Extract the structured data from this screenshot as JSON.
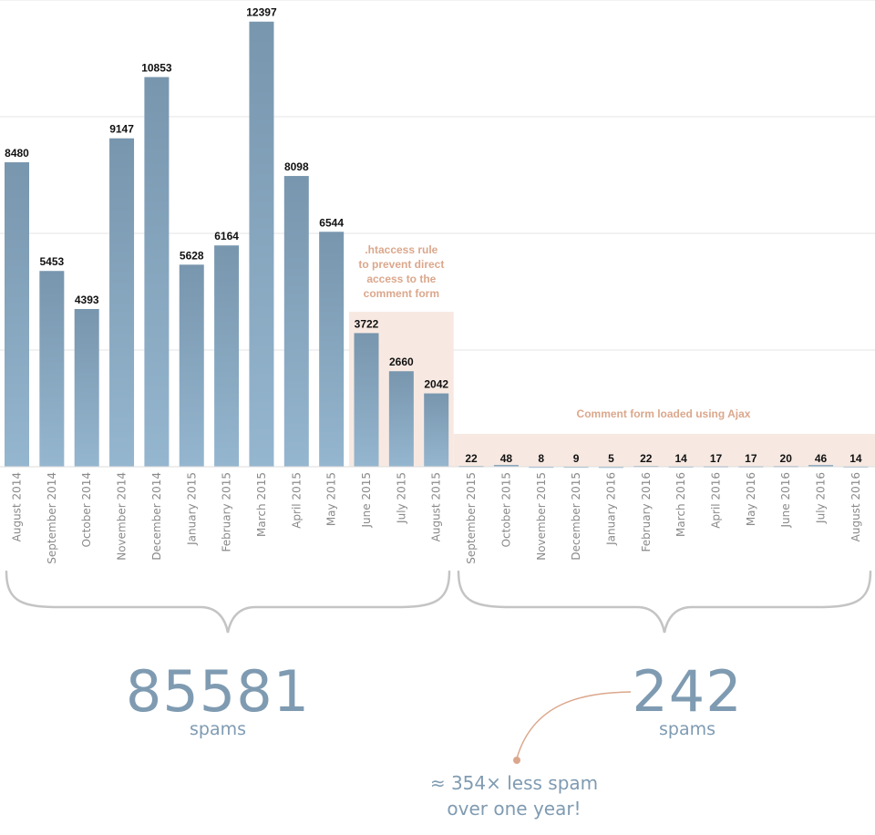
{
  "chart_data": {
    "type": "bar",
    "categories": [
      "August 2014",
      "September 2014",
      "October 2014",
      "November 2014",
      "December 2014",
      "January 2015",
      "February 2015",
      "March 2015",
      "April 2015",
      "May 2015",
      "June 2015",
      "July 2015",
      "August 2015",
      "September 2015",
      "October 2015",
      "November 2015",
      "December 2015",
      "January 2016",
      "February 2016",
      "March 2016",
      "April 2016",
      "May 2016",
      "June 2016",
      "July 2016",
      "August 2016"
    ],
    "values": [
      8480,
      5453,
      4393,
      9147,
      10853,
      5628,
      6164,
      12397,
      8098,
      6544,
      3722,
      2660,
      2042,
      22,
      48,
      8,
      9,
      5,
      22,
      14,
      17,
      17,
      20,
      46,
      14
    ],
    "ylim": [
      0,
      13000
    ],
    "gridlines": [
      0,
      3250,
      6500,
      9750,
      13000
    ],
    "grid": true,
    "annotations": [
      {
        "text_lines": [
          ".htaccess rule",
          "to prevent direct",
          "access to the",
          "comment form"
        ],
        "from_category": "June 2015",
        "to_category": "August 2015"
      },
      {
        "text_lines": [
          "Comment form loaded using Ajax"
        ],
        "from_category": "September 2015",
        "to_category": "August 2016"
      }
    ],
    "colors": {
      "bar_top": "#7896ae",
      "bar_bottom": "#95b6cf",
      "highlight": "#f7e9e2",
      "annotation": "#dba78c",
      "grid": "#e6e6e6",
      "brace": "#c4c4c4"
    }
  },
  "summary": {
    "period1": {
      "total": "85581",
      "unit": "spams"
    },
    "period2": {
      "total": "242",
      "unit": "spams"
    },
    "comparison": {
      "line1": "≈ 354× less spam",
      "line2": "over one year!"
    }
  }
}
